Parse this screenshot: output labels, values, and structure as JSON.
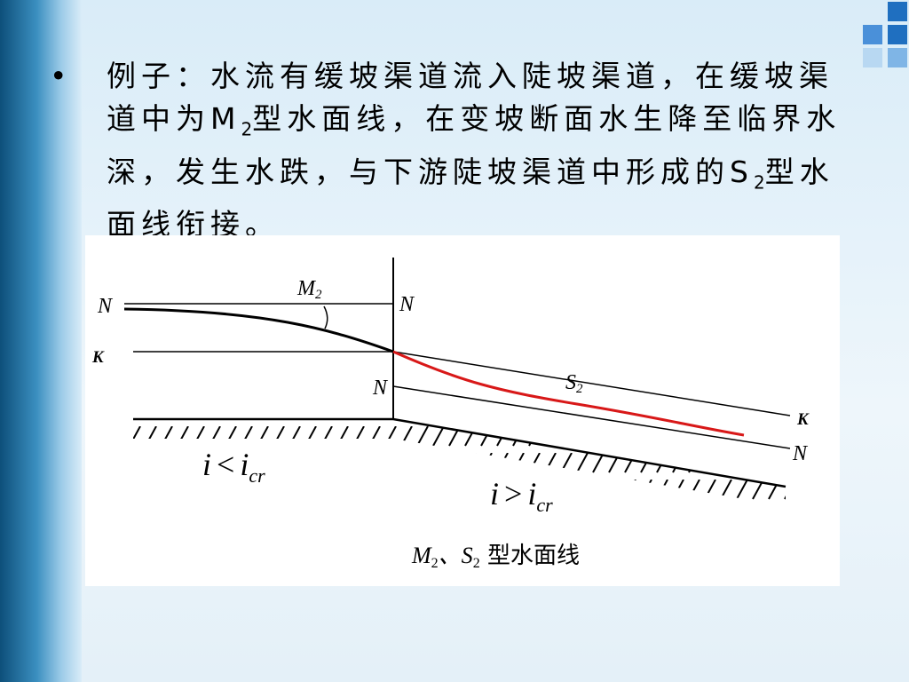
{
  "bullet": {
    "parts": [
      "例子：水流有缓坡渠道流入陡坡渠道，在缓坡渠道中为M",
      "2",
      "型水面线，在变坡断面水生降至临界水深，发生水跌，与下游陡坡渠道中形成的S",
      "2",
      "型水面线衔接。"
    ]
  },
  "diagram": {
    "labels": {
      "n_left": "N",
      "m2": {
        "main": "M",
        "sub": "2"
      },
      "n_wall": "N",
      "k_left": "K",
      "n_right_upper": "N",
      "s2": {
        "main": "S",
        "sub": "2"
      },
      "k_right": "K",
      "n_right": "N"
    },
    "slope_mild": {
      "i": "i",
      "op": "<",
      "icr": "i",
      "sub": "cr"
    },
    "slope_steep": {
      "i": "i",
      "op": ">",
      "icr": "i",
      "sub": "cr"
    },
    "caption": [
      "M",
      "2",
      "、S",
      "2",
      " 型水面线"
    ]
  }
}
